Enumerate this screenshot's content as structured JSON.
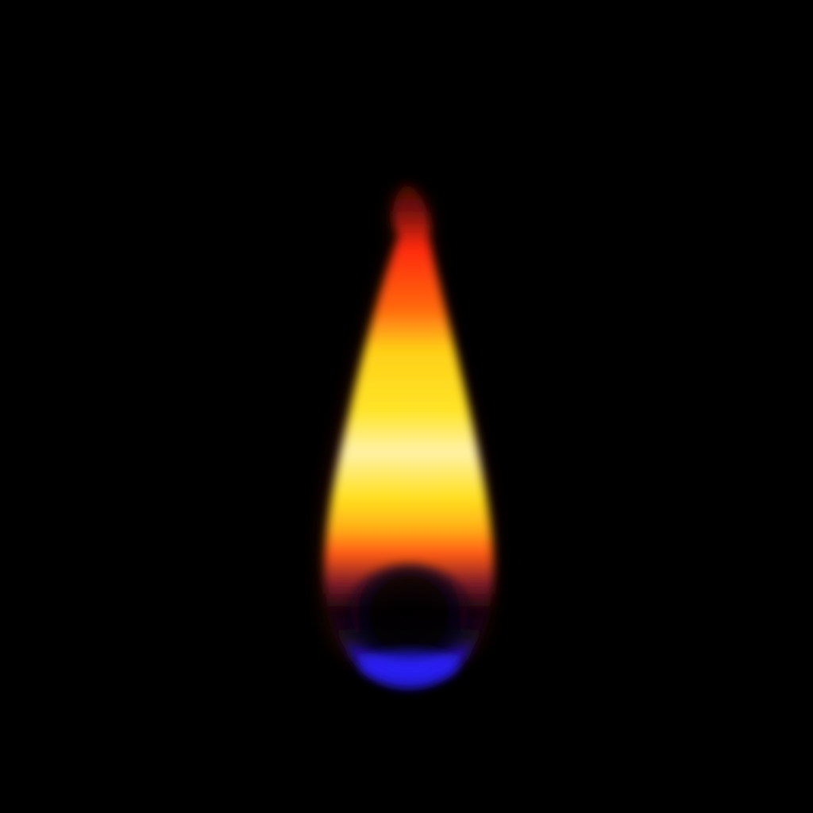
{
  "scene": {
    "background_color": "#000000",
    "subject": "candle-flame"
  },
  "flame": {
    "colors": {
      "tip": "#5a0a05",
      "upper": "#ff2a0a",
      "mid_orange": "#ff8a10",
      "yellow": "#ffe020",
      "pale_yellow": "#fff0a0",
      "lower_orange": "#ff5a14",
      "dark_core": "#0a0208",
      "purple_edge": "#5a1050",
      "blue_base": "#2a1aff"
    }
  }
}
